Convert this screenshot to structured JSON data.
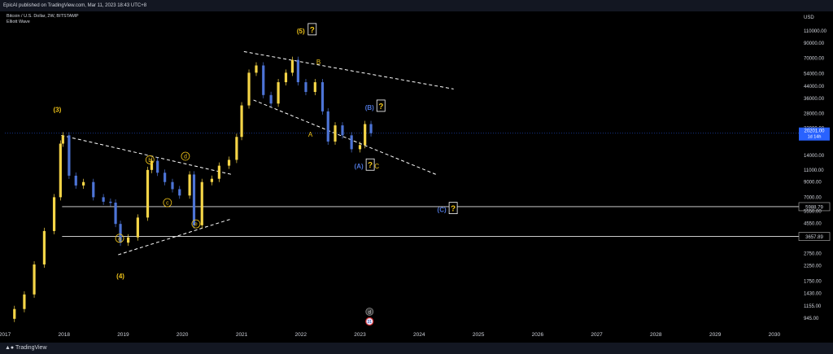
{
  "header": {
    "publish_line": "EpicAI published on TradingView.com, Mar 11, 2023 18:43 UTC+8",
    "symbol_line": "Bitcoin / U.S. Dollar, 2W, BITSTAMP",
    "indicator": "Elliott Wave"
  },
  "footer": {
    "brand": "TradingView"
  },
  "colors": {
    "background": "#000000",
    "candle_up": "#f5d547",
    "candle_down": "#4d74d6",
    "wave_label": "#f0c419",
    "corrective_label": "#4d74d6",
    "dashed_line": "#ffffff",
    "price_badge": "#2962ff"
  },
  "chart_data": {
    "type": "candlestick",
    "title": "Bitcoin / U.S. Dollar, 2W, BITSTAMP",
    "currency_label": "USD",
    "log_scale": true,
    "grid": false,
    "x_tick_labels": [
      "2017",
      "2018",
      "2019",
      "2020",
      "2021",
      "2022",
      "2023",
      "2024",
      "2025",
      "2026",
      "2027",
      "2028",
      "2029",
      "2030"
    ],
    "y_tick_labels": [
      "110000.00",
      "90000.00",
      "70000.00",
      "54000.00",
      "44000.00",
      "36000.00",
      "28000.00",
      "22000.00",
      "14000.00",
      "11000.00",
      "9000.00",
      "7000.00",
      "5550.00",
      "4550.00",
      "2750.00",
      "2250.00",
      "1750.00",
      "1430.00",
      "1155.00",
      "945.00"
    ],
    "ylim": [
      860,
      140000
    ],
    "xlim": [
      "2017-01-01",
      "2030-06-01"
    ],
    "price_now": {
      "value": "20201.00",
      "countdown": "1d 14h",
      "y": 20201
    },
    "horizontal_levels": [
      {
        "label": "5988.79",
        "y": 5988.79
      },
      {
        "label": "3657.89",
        "y": 3657.89
      }
    ],
    "candles": [
      {
        "x": "2017-03-01",
        "y": 1100
      },
      {
        "x": "2017-05-01",
        "y": 1400
      },
      {
        "x": "2017-07-01",
        "y": 2300
      },
      {
        "x": "2017-09-01",
        "y": 4000
      },
      {
        "x": "2017-11-01",
        "y": 7000
      },
      {
        "x": "2017-12-10",
        "y": 17000
      },
      {
        "x": "2017-12-25",
        "y": 19500
      },
      {
        "x": "2018-02-01",
        "y": 10000
      },
      {
        "x": "2018-03-15",
        "y": 8500
      },
      {
        "x": "2018-05-01",
        "y": 9000
      },
      {
        "x": "2018-07-01",
        "y": 7000
      },
      {
        "x": "2018-09-01",
        "y": 6500
      },
      {
        "x": "2018-10-15",
        "y": 6400
      },
      {
        "x": "2018-11-15",
        "y": 4500
      },
      {
        "x": "2018-12-15",
        "y": 3300
      },
      {
        "x": "2019-02-01",
        "y": 3600
      },
      {
        "x": "2019-04-01",
        "y": 5000
      },
      {
        "x": "2019-06-01",
        "y": 11000
      },
      {
        "x": "2019-06-26",
        "y": 12800
      },
      {
        "x": "2019-08-01",
        "y": 10500
      },
      {
        "x": "2019-09-15",
        "y": 9000
      },
      {
        "x": "2019-11-01",
        "y": 8000
      },
      {
        "x": "2019-12-15",
        "y": 7200
      },
      {
        "x": "2020-02-15",
        "y": 10200
      },
      {
        "x": "2020-03-13",
        "y": 4400
      },
      {
        "x": "2020-05-01",
        "y": 9000
      },
      {
        "x": "2020-07-01",
        "y": 9500
      },
      {
        "x": "2020-08-15",
        "y": 11800
      },
      {
        "x": "2020-10-15",
        "y": 13000
      },
      {
        "x": "2020-12-01",
        "y": 19000
      },
      {
        "x": "2021-01-01",
        "y": 32000
      },
      {
        "x": "2021-02-15",
        "y": 55000
      },
      {
        "x": "2021-04-01",
        "y": 62000
      },
      {
        "x": "2021-05-15",
        "y": 38000
      },
      {
        "x": "2021-07-01",
        "y": 33000
      },
      {
        "x": "2021-08-15",
        "y": 47000
      },
      {
        "x": "2021-10-01",
        "y": 55000
      },
      {
        "x": "2021-11-10",
        "y": 68000
      },
      {
        "x": "2021-12-15",
        "y": 47000
      },
      {
        "x": "2022-02-01",
        "y": 40000
      },
      {
        "x": "2022-03-30",
        "y": 47000
      },
      {
        "x": "2022-05-15",
        "y": 29000
      },
      {
        "x": "2022-06-18",
        "y": 17600
      },
      {
        "x": "2022-08-01",
        "y": 23000
      },
      {
        "x": "2022-09-15",
        "y": 19500
      },
      {
        "x": "2022-11-10",
        "y": 15500
      },
      {
        "x": "2023-01-01",
        "y": 16600
      },
      {
        "x": "2023-02-01",
        "y": 23500
      },
      {
        "x": "2023-03-10",
        "y": 20201
      }
    ],
    "trend_lines": [
      {
        "name": "triangle-upper",
        "from": {
          "x": "2017-12-15",
          "y": 19500
        },
        "to": {
          "x": "2020-11-01",
          "y": 10200
        }
      },
      {
        "name": "triangle-lower",
        "from": {
          "x": "2018-12-01",
          "y": 2700
        },
        "to": {
          "x": "2020-11-01",
          "y": 4900
        }
      },
      {
        "name": "channel-upper",
        "from": {
          "x": "2021-01-15",
          "y": 78000
        },
        "to": {
          "x": "2024-08-01",
          "y": 42000
        }
      },
      {
        "name": "channel-lower",
        "from": {
          "x": "2021-03-15",
          "y": 35000
        },
        "to": {
          "x": "2024-04-15",
          "y": 10200
        }
      }
    ],
    "wave_labels": [
      {
        "text": "(3)",
        "x": "2017-11-20",
        "y": 30000,
        "color": "yellow"
      },
      {
        "text": "(4)",
        "x": "2018-12-15",
        "y": 1900,
        "color": "yellow"
      },
      {
        "text": "(5)",
        "x": "2022-01-01",
        "y": 110000,
        "color": "yellow",
        "box": "?"
      },
      {
        "text": "a",
        "x": "2018-12-10",
        "y": 3550,
        "circle": true
      },
      {
        "text": "b",
        "x": "2019-06-15",
        "y": 13000,
        "circle": true
      },
      {
        "text": "c",
        "x": "2019-10-01",
        "y": 6400,
        "circle": true
      },
      {
        "text": "d",
        "x": "2020-01-20",
        "y": 13800,
        "circle": true
      },
      {
        "text": "e",
        "x": "2020-03-25",
        "y": 4500,
        "circle": true
      },
      {
        "text": "A",
        "x": "2022-03-01",
        "y": 19800,
        "color": "yellow"
      },
      {
        "text": "B",
        "x": "2022-04-20",
        "y": 66000,
        "color": "yellow"
      },
      {
        "text": "C",
        "x": "2023-04-15",
        "y": 11700,
        "color": "yellow"
      },
      {
        "text": "(A)",
        "x": "2022-12-25",
        "y": 11700,
        "color": "blue",
        "box": "?"
      },
      {
        "text": "(B)",
        "x": "2023-03-01",
        "y": 31000,
        "color": "blue",
        "box": "?"
      },
      {
        "text": "(C)",
        "x": "2024-05-20",
        "y": 5700,
        "color": "blue",
        "box": "?"
      }
    ],
    "boxed_mark": "?",
    "bottom_circle_label": "d",
    "bottom_event_badge": "31"
  }
}
